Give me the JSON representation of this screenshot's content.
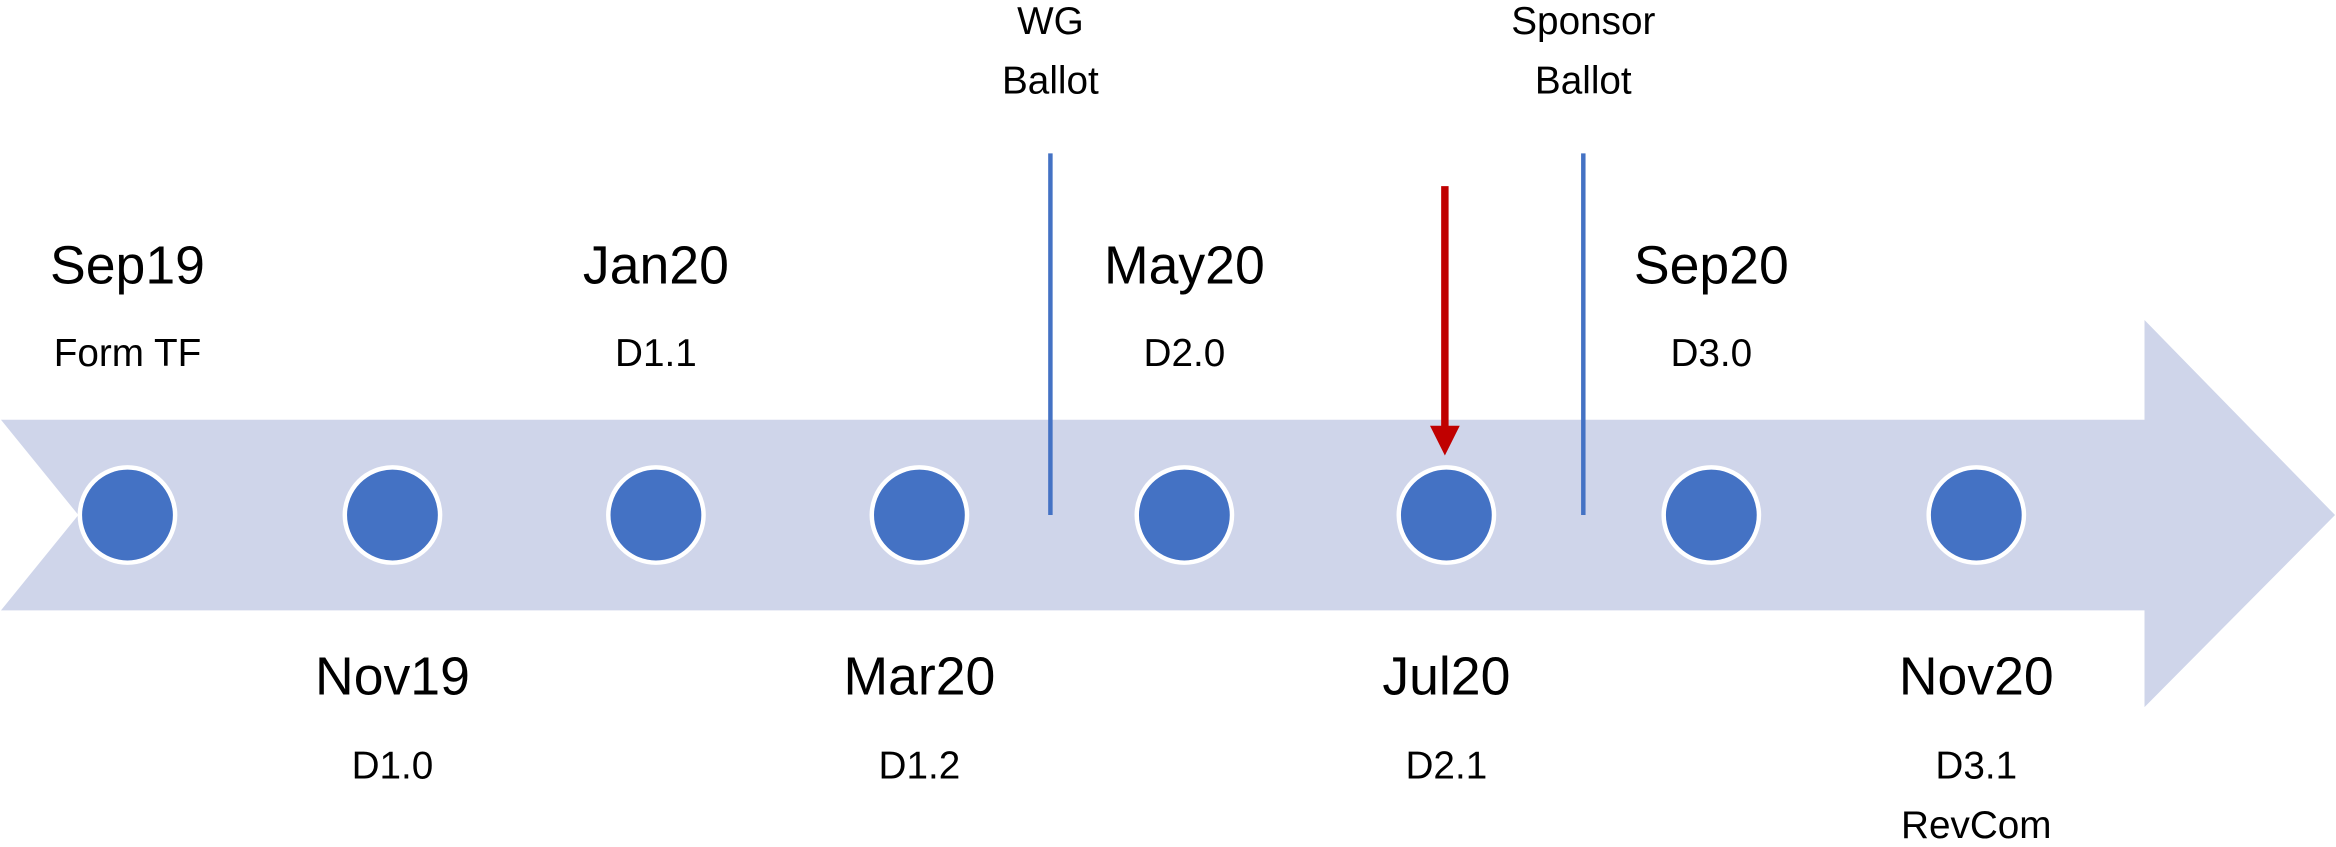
{
  "milestones": [
    {
      "date": "Sep19",
      "labels": [
        "Form TF"
      ],
      "side": "top"
    },
    {
      "date": "Nov19",
      "labels": [
        "D1.0"
      ],
      "side": "bottom"
    },
    {
      "date": "Jan20",
      "labels": [
        "D1.1"
      ],
      "side": "top"
    },
    {
      "date": "Mar20",
      "labels": [
        "D1.2"
      ],
      "side": "bottom"
    },
    {
      "date": "May20",
      "labels": [
        "D2.0"
      ],
      "side": "top"
    },
    {
      "date": "Jul20",
      "labels": [
        "D2.1"
      ],
      "side": "bottom"
    },
    {
      "date": "Sep20",
      "labels": [
        "D3.0"
      ],
      "side": "top"
    },
    {
      "date": "Nov20",
      "labels": [
        "D3.1",
        "RevCom"
      ],
      "side": "bottom"
    }
  ],
  "ballots": [
    {
      "lines": [
        "WG",
        "Ballot"
      ]
    },
    {
      "lines": [
        "Sponsor",
        "Ballot"
      ]
    }
  ]
}
